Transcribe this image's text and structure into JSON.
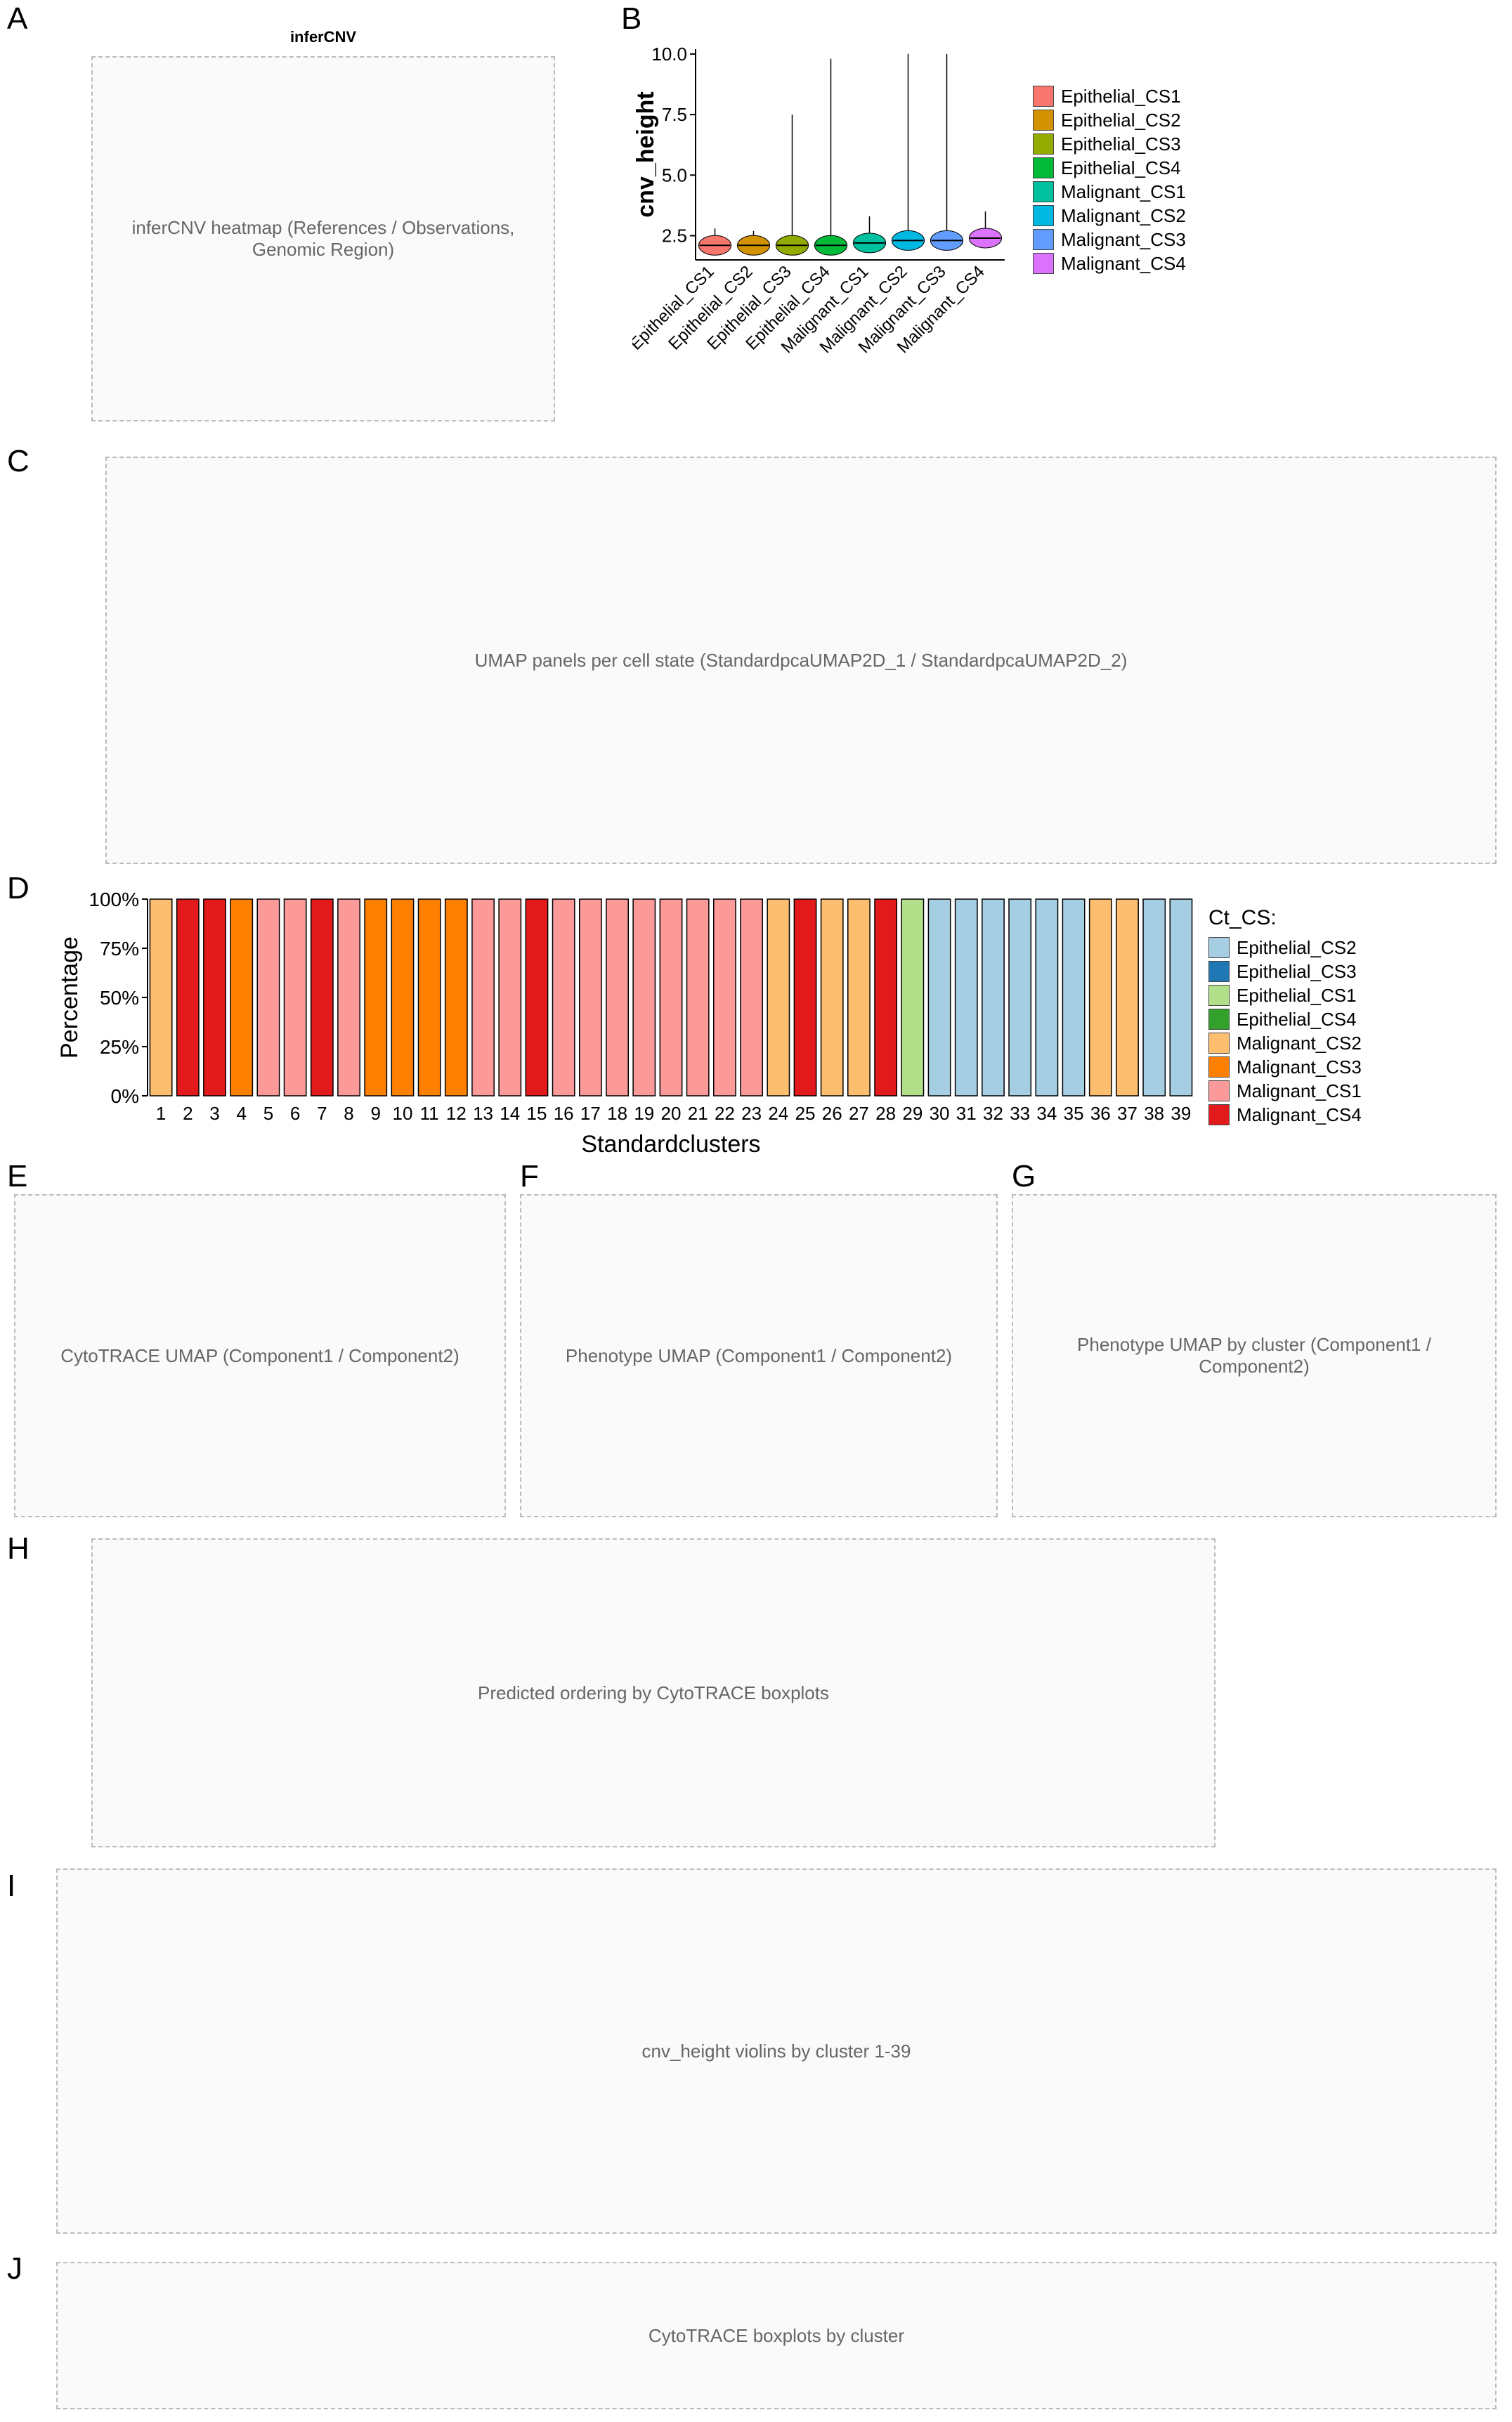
{
  "panel_labels": {
    "A": "A",
    "B": "B",
    "C": "C",
    "D": "D",
    "E": "E",
    "F": "F",
    "G": "G",
    "H": "H",
    "I": "I",
    "J": "J"
  },
  "colors": {
    "Epithelial_CS1": "#f8766d",
    "Epithelial_CS2": "#d39200",
    "Epithelial_CS3": "#93aa00",
    "Epithelial_CS4": "#00ba38",
    "Malignant_CS1": "#00c19f",
    "Malignant_CS2": "#00b9e3",
    "Malignant_CS3": "#619cff",
    "Malignant_CS4": "#db72fb",
    "d_Epithelial_CS2": "#a6cee3",
    "d_Epithelial_CS3": "#1f78b4",
    "d_Epithelial_CS1": "#b2df8a",
    "d_Epithelial_CS4": "#33a02c",
    "d_Malignant_CS2": "#fdbf6f",
    "d_Malignant_CS3": "#ff7f00",
    "d_Malignant_CS1": "#fb9a99",
    "d_Malignant_CS4": "#e31a1c"
  },
  "panelA": {
    "title": "inferCNV",
    "stub": "inferCNV heatmap (References / Observations, Genomic Region)"
  },
  "panelC": {
    "stub": "UMAP panels per cell state (StandardpcaUMAP2D_1 / StandardpcaUMAP2D_2)"
  },
  "panelE": {
    "stub": "CytoTRACE UMAP (Component1 / Component2)"
  },
  "panelF": {
    "stub": "Phenotype UMAP (Component1 / Component2)"
  },
  "panelG": {
    "stub": "Phenotype UMAP by cluster (Component1 / Component2)"
  },
  "panelH": {
    "stub": "Predicted ordering by CytoTRACE boxplots"
  },
  "panelI": {
    "stub": "cnv_height violins by cluster 1-39"
  },
  "panelJ": {
    "stub": "CytoTRACE boxplots by cluster"
  },
  "chart_data": [
    {
      "id": "B",
      "type": "violin",
      "ylabel": "cnv_height",
      "ylim": [
        1.5,
        10.2
      ],
      "yticks": [
        2.5,
        5.0,
        7.5,
        10.0
      ],
      "ytick_labels": [
        "2.5",
        "5.0",
        "7.5",
        "10.0"
      ],
      "categories": [
        "Epithelial_CS1",
        "Epithelial_CS2",
        "Epithelial_CS3",
        "Epithelial_CS4",
        "Malignant_CS1",
        "Malignant_CS2",
        "Malignant_CS3",
        "Malignant_CS4"
      ],
      "medians": [
        2.1,
        2.1,
        2.1,
        2.1,
        2.2,
        2.3,
        2.3,
        2.4
      ],
      "maxima": [
        2.8,
        2.7,
        7.5,
        9.8,
        3.3,
        10.0,
        10.0,
        3.5
      ],
      "legend": [
        "Epithelial_CS1",
        "Epithelial_CS2",
        "Epithelial_CS3",
        "Epithelial_CS4",
        "Malignant_CS1",
        "Malignant_CS2",
        "Malignant_CS3",
        "Malignant_CS4"
      ]
    },
    {
      "id": "D",
      "type": "bar",
      "stacked": true,
      "xlabel": "Standardclusters",
      "ylabel": "Percentage",
      "yticks": [
        0,
        25,
        50,
        75,
        100
      ],
      "ytick_labels": [
        "0%",
        "25%",
        "50%",
        "75%",
        "100%"
      ],
      "legend_title": "Ct_CS:",
      "series_order": [
        "Epithelial_CS2",
        "Epithelial_CS3",
        "Epithelial_CS1",
        "Epithelial_CS4",
        "Malignant_CS2",
        "Malignant_CS3",
        "Malignant_CS1",
        "Malignant_CS4"
      ],
      "categories": [
        "1",
        "2",
        "3",
        "4",
        "5",
        "6",
        "7",
        "8",
        "9",
        "10",
        "11",
        "12",
        "13",
        "14",
        "15",
        "16",
        "17",
        "18",
        "19",
        "20",
        "21",
        "22",
        "23",
        "24",
        "25",
        "26",
        "27",
        "28",
        "29",
        "30",
        "31",
        "32",
        "33",
        "34",
        "35",
        "36",
        "37",
        "38",
        "39"
      ],
      "dominant": [
        "Malignant_CS2",
        "Malignant_CS4",
        "Malignant_CS4",
        "Malignant_CS3",
        "Malignant_CS1",
        "Malignant_CS1",
        "Malignant_CS4",
        "Malignant_CS1",
        "Malignant_CS3",
        "Malignant_CS3",
        "Malignant_CS3",
        "Malignant_CS3",
        "Malignant_CS1",
        "Malignant_CS1",
        "Malignant_CS4",
        "Malignant_CS1",
        "Malignant_CS1",
        "Malignant_CS1",
        "Malignant_CS1",
        "Malignant_CS1",
        "Malignant_CS1",
        "Malignant_CS1",
        "Malignant_CS1",
        "Malignant_CS2",
        "Malignant_CS4",
        "Malignant_CS2",
        "Malignant_CS2",
        "Malignant_CS4",
        "Epithelial_CS1",
        "Epithelial_CS2",
        "Epithelial_CS2",
        "Epithelial_CS2",
        "Epithelial_CS2",
        "Epithelial_CS2",
        "Epithelial_CS2",
        "Malignant_CS2",
        "Malignant_CS2",
        "Epithelial_CS2",
        "Epithelial_CS2"
      ]
    }
  ]
}
